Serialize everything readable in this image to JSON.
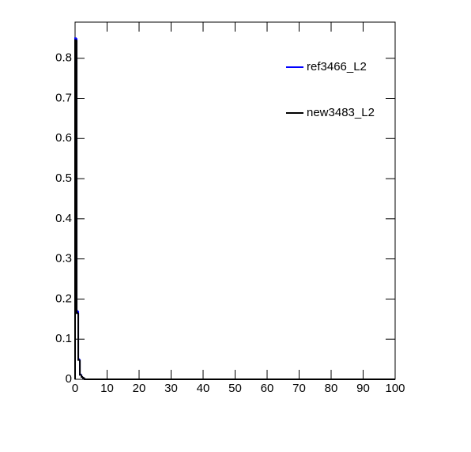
{
  "chart_data": {
    "type": "histogram",
    "bins": [
      0,
      0.5,
      1,
      1.5,
      2,
      2.5,
      3,
      100
    ],
    "series": [
      {
        "name": "ref3466_L2",
        "color": "#0000ff",
        "values": [
          0.85,
          0.17,
          0.05,
          0.012,
          0.006,
          0.003,
          0
        ]
      },
      {
        "name": "new3483_L2",
        "color": "#000000",
        "values": [
          0.845,
          0.165,
          0.048,
          0.011,
          0.006,
          0.003,
          0
        ]
      }
    ],
    "xlim": [
      0,
      100
    ],
    "xticks": [
      0,
      10,
      20,
      30,
      40,
      50,
      60,
      70,
      80,
      90,
      100
    ],
    "ylim": [
      0,
      0.89
    ],
    "yticks": [
      0,
      0.1,
      0.2,
      0.3,
      0.4,
      0.5,
      0.6,
      0.7,
      0.8
    ]
  }
}
